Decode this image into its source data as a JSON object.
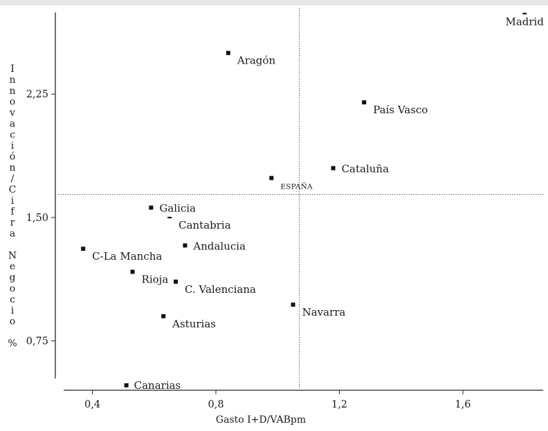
{
  "chart_data": {
    "type": "scatter",
    "xlabel": "Gasto I+D/VABpm",
    "ylabel_chars": [
      "I",
      "n",
      "n",
      "o",
      "v",
      "a",
      "c",
      "i",
      "ó",
      "n",
      "/",
      "C",
      "i",
      "f",
      "r",
      "a",
      "",
      "N",
      "e",
      "g",
      "o",
      "c",
      "i",
      "o",
      "",
      "%"
    ],
    "xlim": [
      0.28,
      1.86
    ],
    "ylim": [
      0.45,
      2.78
    ],
    "x_ticks": [
      0.4,
      0.8,
      1.2,
      1.6
    ],
    "x_tick_labels": [
      "0,4",
      "0,8",
      "1,2",
      "1,6"
    ],
    "y_ticks": [
      0.75,
      1.5,
      2.25
    ],
    "y_tick_labels": [
      "0,75",
      "1,50",
      "2,25"
    ],
    "ref_x": 1.07,
    "ref_y": 1.64,
    "grid": false,
    "points": [
      {
        "name": "Madrid",
        "x": 1.8,
        "y": 2.74,
        "label_pos": "below",
        "marker": "dash"
      },
      {
        "name": "Aragón",
        "x": 0.84,
        "y": 2.5,
        "label_pos": "right-below"
      },
      {
        "name": "País Vasco",
        "x": 1.28,
        "y": 2.2,
        "label_pos": "right-below"
      },
      {
        "name": "Cataluña",
        "x": 1.18,
        "y": 1.8,
        "label_pos": "right"
      },
      {
        "name": "ESPAÑA",
        "x": 0.98,
        "y": 1.74,
        "label_pos": "right-below",
        "small": true
      },
      {
        "name": "Galicia",
        "x": 0.59,
        "y": 1.56,
        "label_pos": "right"
      },
      {
        "name": "Cantabria",
        "x": 0.65,
        "y": 1.5,
        "label_pos": "right-below",
        "marker": "dash"
      },
      {
        "name": "Andalucia",
        "x": 0.7,
        "y": 1.33,
        "label_pos": "right"
      },
      {
        "name": "C-La Mancha",
        "x": 0.37,
        "y": 1.31,
        "label_pos": "right-below"
      },
      {
        "name": "Rioja",
        "x": 0.53,
        "y": 1.17,
        "label_pos": "right-below"
      },
      {
        "name": "C. Valenciana",
        "x": 0.67,
        "y": 1.11,
        "label_pos": "right-below"
      },
      {
        "name": "Navarra",
        "x": 1.05,
        "y": 0.97,
        "label_pos": "right-below"
      },
      {
        "name": "Asturias",
        "x": 0.63,
        "y": 0.9,
        "label_pos": "right-below"
      },
      {
        "name": "Canarias",
        "x": 0.51,
        "y": 0.48,
        "label_pos": "right"
      }
    ]
  }
}
